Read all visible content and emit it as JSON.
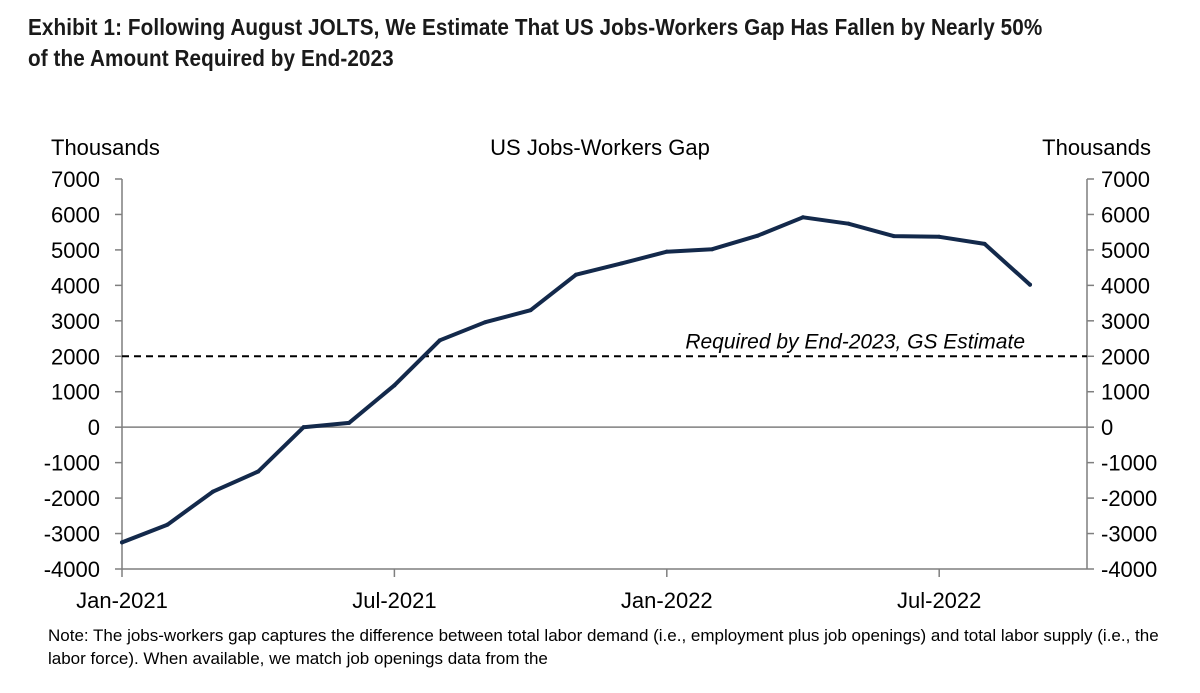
{
  "exhibit_title": "Exhibit 1: Following August JOLTS, We Estimate That US Jobs-Workers Gap Has Fallen by Nearly 50% of the Amount Required by End-2023",
  "note": "Note: The jobs-workers gap captures the difference between total labor demand (i.e., employment plus job openings) and total labor supply (i.e., the labor force). When available, we match job openings data from the",
  "colors": {
    "series": "#13294b",
    "axis": "#7f7f7f",
    "text": "#000000"
  },
  "chart_data": {
    "type": "line",
    "title": "US Jobs-Workers Gap",
    "ylabel_left": "Thousands",
    "ylabel_right": "Thousands",
    "ylim": [
      -4000,
      7000
    ],
    "yticks": [
      7000,
      6000,
      5000,
      4000,
      3000,
      2000,
      1000,
      0,
      -1000,
      -2000,
      -3000,
      -4000
    ],
    "xlim": [
      "2021-01",
      "2022-10"
    ],
    "xtick_labels": [
      {
        "date": "2021-01",
        "label": "Jan-2021"
      },
      {
        "date": "2021-07",
        "label": "Jul-2021"
      },
      {
        "date": "2022-01",
        "label": "Jan-2022"
      },
      {
        "date": "2022-07",
        "label": "Jul-2022"
      }
    ],
    "grid": false,
    "series": [
      {
        "x": [
          "2021-01",
          "2021-02",
          "2021-03",
          "2021-04",
          "2021-05",
          "2021-06",
          "2021-07",
          "2021-08",
          "2021-09",
          "2021-10",
          "2021-11",
          "2021-12",
          "2022-01",
          "2022-02",
          "2022-03",
          "2022-04",
          "2022-05",
          "2022-06",
          "2022-07",
          "2022-08",
          "2022-09"
        ],
        "values": [
          -3250,
          -2750,
          -1820,
          -1250,
          0,
          120,
          1180,
          2450,
          2960,
          3300,
          4300,
          4620,
          4950,
          5020,
          5400,
          5920,
          5740,
          5390,
          5370,
          5170,
          4020
        ]
      }
    ],
    "reference_line": {
      "value": 2000,
      "label": "Required by End-2023, GS Estimate",
      "style": "dashed"
    }
  }
}
